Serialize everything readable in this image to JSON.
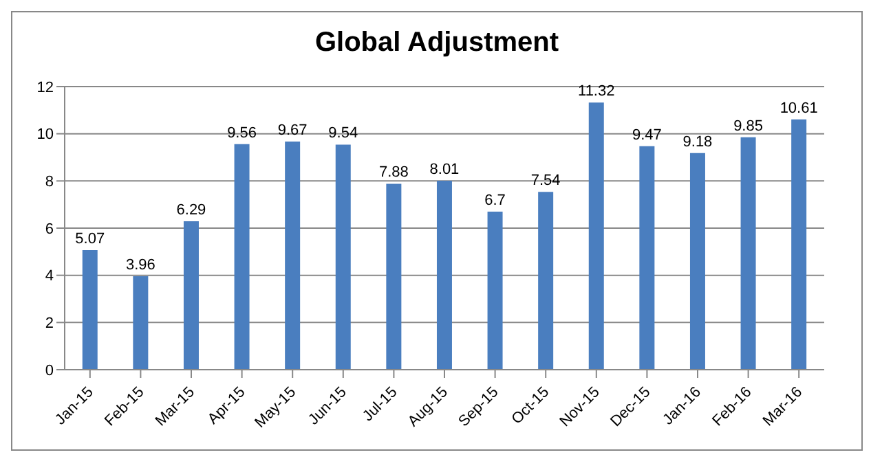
{
  "chart_data": {
    "type": "bar",
    "title": "Global Adjustment",
    "categories": [
      "Jan-15",
      "Feb-15",
      "Mar-15",
      "Apr-15",
      "May-15",
      "Jun-15",
      "Jul-15",
      "Aug-15",
      "Sep-15",
      "Oct-15",
      "Nov-15",
      "Dec-15",
      "Jan-16",
      "Feb-16",
      "Mar-16"
    ],
    "values": [
      5.07,
      3.96,
      6.29,
      9.56,
      9.67,
      9.54,
      7.88,
      8.01,
      6.7,
      7.54,
      11.32,
      9.47,
      9.18,
      9.85,
      10.61
    ],
    "color": "#4a7ebf",
    "ylim": [
      0,
      12
    ],
    "yticks": [
      0,
      2,
      4,
      6,
      8,
      10,
      12
    ],
    "grid": "y",
    "data_labels": true,
    "legend": false
  }
}
